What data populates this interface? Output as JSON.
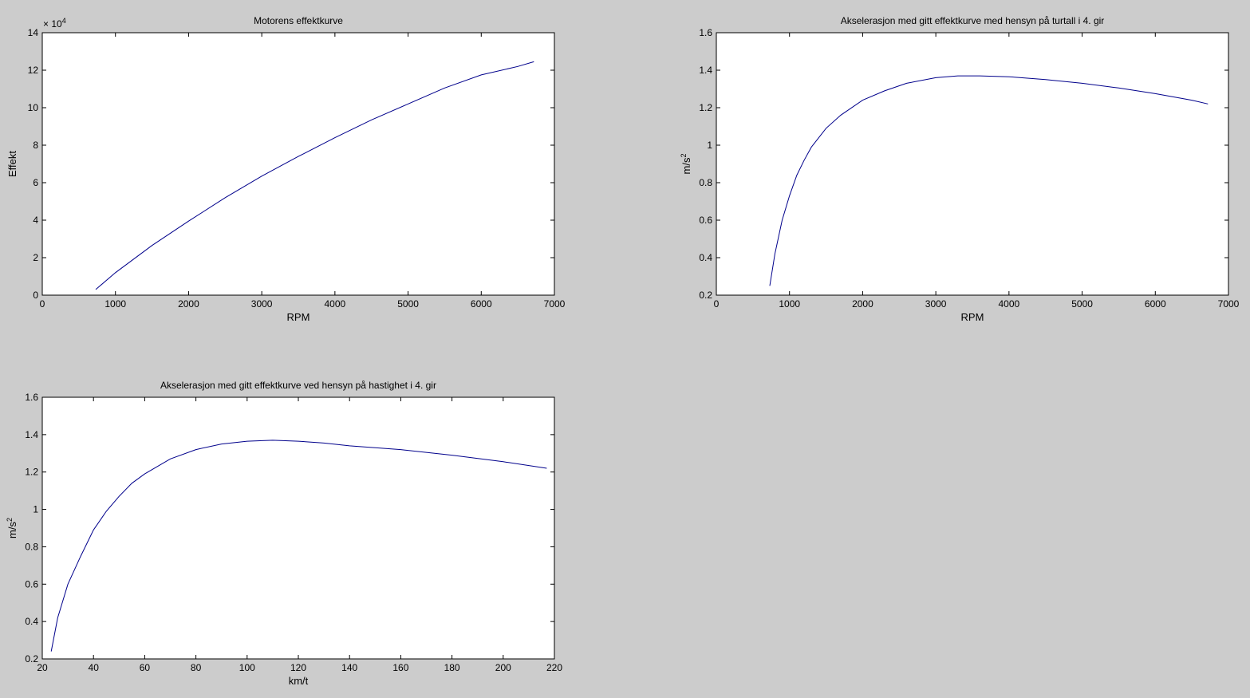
{
  "figure": {
    "background": "#cccccc",
    "axes_background": "#ffffff",
    "line_color": "#00008b"
  },
  "chart_data": [
    {
      "type": "line",
      "title": "Motorens effektkurve",
      "xlabel": "RPM",
      "ylabel": "Effekt",
      "xlim": [
        0,
        7000
      ],
      "ylim": [
        0,
        14
      ],
      "y_multiplier_label": "× 10",
      "y_multiplier_exponent": "4",
      "xticks": [
        0,
        1000,
        2000,
        3000,
        4000,
        5000,
        6000,
        7000
      ],
      "yticks": [
        0,
        2,
        4,
        6,
        8,
        10,
        12,
        14
      ],
      "grid": false,
      "series": [
        {
          "x": [
            730,
            1000,
            1500,
            2000,
            2500,
            3000,
            3500,
            4000,
            4500,
            5000,
            5500,
            6000,
            6500,
            6720
          ],
          "y": [
            0.3,
            1.2,
            2.65,
            3.95,
            5.2,
            6.35,
            7.4,
            8.4,
            9.35,
            10.2,
            11.05,
            11.75,
            12.2,
            12.45
          ]
        }
      ]
    },
    {
      "type": "line",
      "title": "Akselerasjon med gitt effektkurve med hensyn på turtall i 4. gir",
      "xlabel": "RPM",
      "ylabel": "m/s",
      "ylabel_sup": "2",
      "xlim": [
        0,
        7000
      ],
      "ylim": [
        0.2,
        1.6
      ],
      "xticks": [
        0,
        1000,
        2000,
        3000,
        4000,
        5000,
        6000,
        7000
      ],
      "yticks": [
        0.2,
        0.4,
        0.6,
        0.8,
        1,
        1.2,
        1.4,
        1.6
      ],
      "grid": false,
      "series": [
        {
          "x": [
            730,
            800,
            900,
            1000,
            1100,
            1200,
            1300,
            1500,
            1700,
            2000,
            2300,
            2600,
            3000,
            3300,
            3600,
            4000,
            4500,
            5000,
            5500,
            6000,
            6500,
            6720
          ],
          "y": [
            0.25,
            0.42,
            0.6,
            0.73,
            0.84,
            0.92,
            0.99,
            1.09,
            1.16,
            1.24,
            1.29,
            1.33,
            1.36,
            1.37,
            1.37,
            1.365,
            1.35,
            1.33,
            1.305,
            1.275,
            1.24,
            1.22
          ]
        }
      ]
    },
    {
      "type": "line",
      "title": "Akselerasjon med gitt effektkurve ved hensyn på hastighet i 4. gir",
      "xlabel": "km/t",
      "ylabel": "m/s",
      "ylabel_sup": "2",
      "xlim": [
        20,
        220
      ],
      "ylim": [
        0.2,
        1.6
      ],
      "xticks": [
        20,
        40,
        60,
        80,
        100,
        120,
        140,
        160,
        180,
        200,
        220
      ],
      "yticks": [
        0.2,
        0.4,
        0.6,
        0.8,
        1,
        1.2,
        1.4,
        1.6
      ],
      "grid": false,
      "series": [
        {
          "x": [
            23.5,
            26,
            30,
            35,
            40,
            45,
            50,
            55,
            60,
            70,
            80,
            90,
            100,
            110,
            120,
            130,
            140,
            160,
            180,
            200,
            217
          ],
          "y": [
            0.24,
            0.42,
            0.6,
            0.75,
            0.89,
            0.99,
            1.07,
            1.14,
            1.19,
            1.27,
            1.32,
            1.35,
            1.365,
            1.37,
            1.365,
            1.355,
            1.34,
            1.32,
            1.29,
            1.255,
            1.22
          ]
        }
      ]
    }
  ]
}
